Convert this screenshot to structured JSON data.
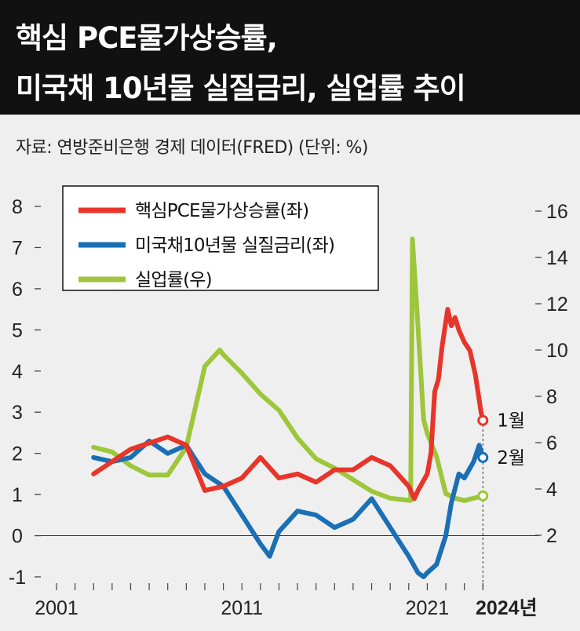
{
  "header": {
    "title_line1": "핵심 PCE물가상승률,",
    "title_line2": "미국채 10년물 실질금리, 실업률 추이"
  },
  "source": "자료: 연방준비은행 경제 데이터(FRED) (단위: %)",
  "colors": {
    "pce": "#e8352a",
    "real_rate": "#1a6fb5",
    "unemployment": "#9dc63b"
  },
  "chart_data": {
    "type": "line",
    "title": "핵심 PCE물가상승률, 미국채 10년물 실질금리, 실업률 추이",
    "x_ticks": [
      "2001",
      "2011",
      "2021"
    ],
    "x_end_label": "2024년",
    "xlim": [
      2001,
      2024.2
    ],
    "y_left": {
      "ylim": [
        -1,
        8
      ],
      "ticks": [
        "-1",
        "0",
        "1",
        "2",
        "3",
        "4",
        "5",
        "6",
        "7",
        "8"
      ]
    },
    "y_right": {
      "ylim": [
        0,
        16
      ],
      "ticks": [
        "2",
        "4",
        "6",
        "8",
        "10",
        "12",
        "14",
        "16"
      ]
    },
    "legend_position": "top-left",
    "series": [
      {
        "name": "핵심PCE물가상승률(좌)",
        "axis": "left",
        "end_label": "1월",
        "points": [
          [
            2003,
            1.5
          ],
          [
            2005,
            2.1
          ],
          [
            2007,
            2.4
          ],
          [
            2008,
            2.2
          ],
          [
            2009,
            1.1
          ],
          [
            2010,
            1.2
          ],
          [
            2011,
            1.4
          ],
          [
            2012,
            1.9
          ],
          [
            2013,
            1.4
          ],
          [
            2014,
            1.5
          ],
          [
            2015,
            1.3
          ],
          [
            2016,
            1.6
          ],
          [
            2017,
            1.6
          ],
          [
            2018,
            1.9
          ],
          [
            2019,
            1.7
          ],
          [
            2020,
            1.2
          ],
          [
            2020.3,
            0.9
          ],
          [
            2020.5,
            1.1
          ],
          [
            2021.0,
            1.5
          ],
          [
            2021.2,
            2.0
          ],
          [
            2021.4,
            3.5
          ],
          [
            2021.6,
            3.8
          ],
          [
            2021.8,
            4.6
          ],
          [
            2022.0,
            5.2
          ],
          [
            2022.1,
            5.5
          ],
          [
            2022.3,
            5.1
          ],
          [
            2022.5,
            5.3
          ],
          [
            2022.7,
            5.0
          ],
          [
            2023,
            4.7
          ],
          [
            2023.3,
            4.5
          ],
          [
            2023.6,
            3.9
          ],
          [
            2023.9,
            3.0
          ],
          [
            2024.0,
            2.8
          ]
        ]
      },
      {
        "name": "미국채10년물 실질금리(좌)",
        "axis": "left",
        "end_label": "2월",
        "points": [
          [
            2003,
            1.9
          ],
          [
            2004,
            1.8
          ],
          [
            2005,
            1.9
          ],
          [
            2006,
            2.3
          ],
          [
            2007,
            2.0
          ],
          [
            2008,
            2.2
          ],
          [
            2009,
            1.5
          ],
          [
            2010,
            1.2
          ],
          [
            2011,
            0.5
          ],
          [
            2012,
            -0.2
          ],
          [
            2012.5,
            -0.5
          ],
          [
            2013,
            0.1
          ],
          [
            2014,
            0.6
          ],
          [
            2015,
            0.5
          ],
          [
            2016,
            0.2
          ],
          [
            2017,
            0.4
          ],
          [
            2018,
            0.9
          ],
          [
            2019,
            0.2
          ],
          [
            2020,
            -0.5
          ],
          [
            2020.5,
            -0.9
          ],
          [
            2020.8,
            -1.0
          ],
          [
            2021,
            -0.9
          ],
          [
            2021.5,
            -0.7
          ],
          [
            2022,
            0.0
          ],
          [
            2022.3,
            0.8
          ],
          [
            2022.7,
            1.5
          ],
          [
            2023,
            1.4
          ],
          [
            2023.5,
            1.8
          ],
          [
            2023.8,
            2.2
          ],
          [
            2024.0,
            1.9
          ]
        ]
      },
      {
        "name": "실업률(우)",
        "axis": "right",
        "end_label": "",
        "points": [
          [
            2003,
            5.8
          ],
          [
            2004,
            5.6
          ],
          [
            2005,
            5.0
          ],
          [
            2006,
            4.6
          ],
          [
            2007,
            4.6
          ],
          [
            2008,
            5.8
          ],
          [
            2009,
            9.3
          ],
          [
            2009.8,
            10.0
          ],
          [
            2010,
            9.8
          ],
          [
            2011,
            9.0
          ],
          [
            2012,
            8.1
          ],
          [
            2013,
            7.4
          ],
          [
            2014,
            6.2
          ],
          [
            2015,
            5.3
          ],
          [
            2016,
            4.9
          ],
          [
            2017,
            4.4
          ],
          [
            2018,
            3.9
          ],
          [
            2019,
            3.6
          ],
          [
            2020.1,
            3.5
          ],
          [
            2020.2,
            14.8
          ],
          [
            2020.5,
            11.0
          ],
          [
            2020.8,
            7.0
          ],
          [
            2021,
            6.4
          ],
          [
            2021.5,
            5.4
          ],
          [
            2022,
            3.8
          ],
          [
            2022.5,
            3.6
          ],
          [
            2023,
            3.5
          ],
          [
            2023.5,
            3.6
          ],
          [
            2024.0,
            3.7
          ]
        ]
      }
    ]
  }
}
